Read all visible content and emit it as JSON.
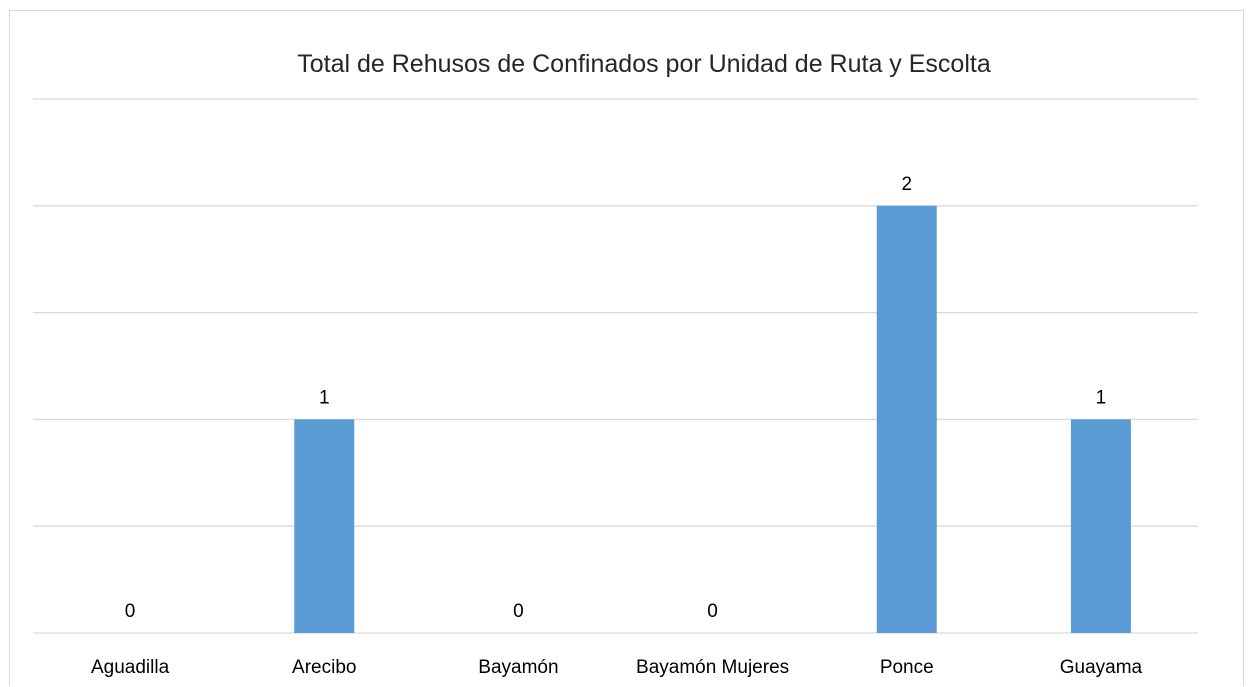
{
  "chart_data": {
    "type": "bar",
    "title": "Total de Rehusos de Confinados por Unidad de Ruta y Escolta",
    "xlabel": "",
    "ylabel": "",
    "categories": [
      "Aguadilla",
      "Arecibo",
      "Bayamón",
      "Bayamón Mujeres",
      "Ponce",
      "Guayama"
    ],
    "values": [
      0,
      1,
      0,
      0,
      2,
      1
    ],
    "data_labels": [
      "0",
      "1",
      "0",
      "0",
      "2",
      "1"
    ],
    "ylim": [
      0,
      2.5
    ],
    "grid": true,
    "legend": "none",
    "colors": {
      "bar": "#5b9bd5",
      "grid": "#d9d9d9",
      "text": "#000000"
    }
  }
}
